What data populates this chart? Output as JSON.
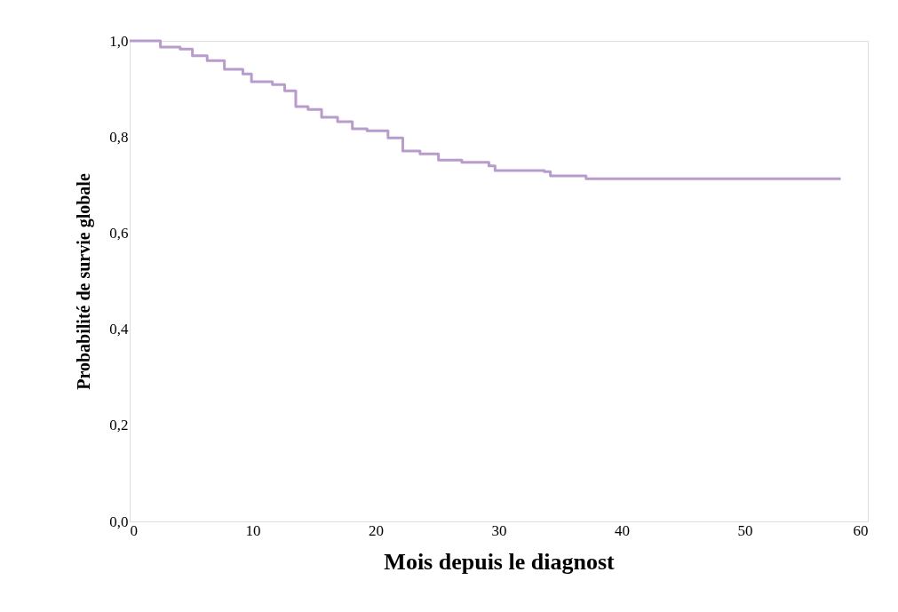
{
  "chart_data": {
    "type": "step",
    "xlabel": "Mois depuis le diagnost",
    "ylabel": "Probabilité de survie globale",
    "x": [
      0,
      1.7,
      2.5,
      4.1,
      5.1,
      6.3,
      7.7,
      9.2,
      9.9,
      11.6,
      12.6,
      13.5,
      14.5,
      15.6,
      16.9,
      18.1,
      19.3,
      21.0,
      22.2,
      23.6,
      25.1,
      27.0,
      29.2,
      29.7,
      33.7,
      34.2,
      37.1,
      57.8
    ],
    "series": [
      {
        "color": "#b89ccb",
        "values": [
          1.0,
          1.0,
          0.987,
          0.983,
          0.969,
          0.959,
          0.941,
          0.931,
          0.915,
          0.909,
          0.896,
          0.863,
          0.857,
          0.841,
          0.832,
          0.817,
          0.813,
          0.798,
          0.771,
          0.765,
          0.752,
          0.747,
          0.74,
          0.73,
          0.728,
          0.719,
          0.713,
          0.713
        ]
      }
    ],
    "xlim": [
      0,
      60
    ],
    "xticks": [
      0,
      10,
      20,
      30,
      40,
      50,
      60
    ],
    "ylim": [
      0,
      1
    ],
    "yticks": [
      {
        "value": 0,
        "label": "0,0"
      },
      {
        "value": 0.2,
        "label": "0,2"
      },
      {
        "value": 0.4,
        "label": "0,4"
      },
      {
        "value": 0.6,
        "label": "0,6"
      },
      {
        "value": 0.8,
        "label": "0,8"
      },
      {
        "value": 1,
        "label": "1,0"
      }
    ],
    "grid": false
  }
}
